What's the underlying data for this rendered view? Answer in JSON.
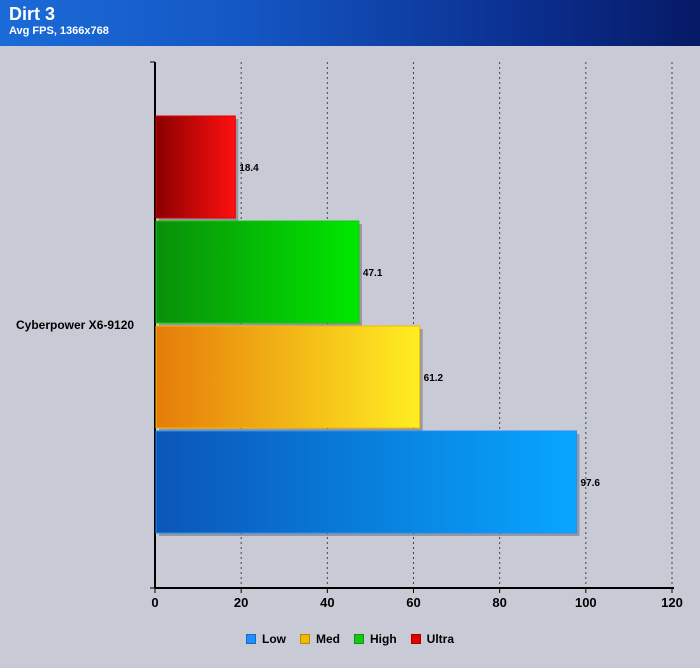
{
  "chart_data": {
    "type": "bar",
    "orientation": "horizontal",
    "title": "Dirt 3",
    "subtitle": "Avg FPS, 1366x768",
    "categories": [
      "Cyberpower X6-9120"
    ],
    "series": [
      {
        "name": "Low",
        "values": [
          97.6
        ],
        "color": "#1f8fff"
      },
      {
        "name": "Med",
        "values": [
          61.2
        ],
        "color": "#f5b800"
      },
      {
        "name": "High",
        "values": [
          47.1
        ],
        "color": "#14c814"
      },
      {
        "name": "Ultra",
        "values": [
          18.4
        ],
        "color": "#e00000"
      }
    ],
    "xlim": [
      0,
      120
    ],
    "xticks": [
      "0",
      "20",
      "40",
      "60",
      "80",
      "100",
      "120"
    ],
    "grid": "vertical dotted",
    "legend_position": "bottom"
  }
}
